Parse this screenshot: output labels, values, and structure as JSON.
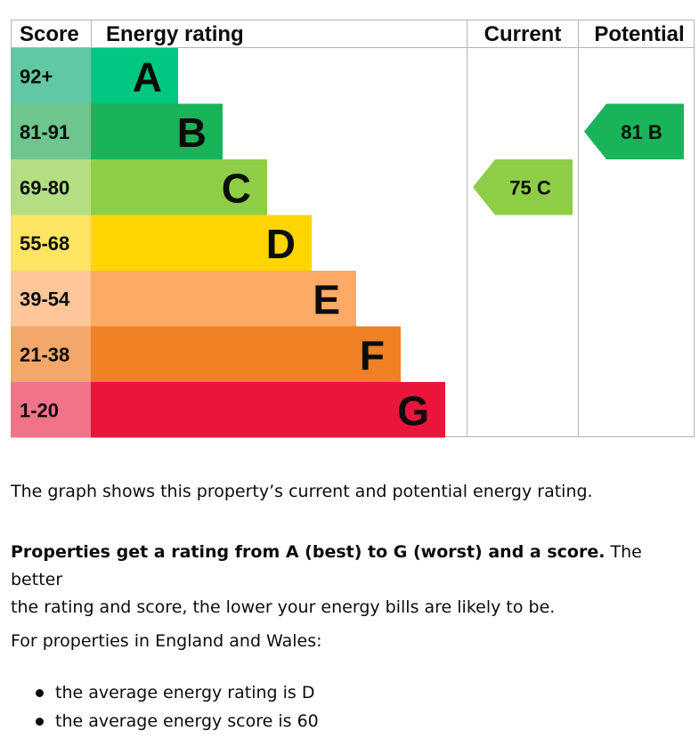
{
  "chart_data": {
    "type": "bar",
    "headers": {
      "score": "Score",
      "rating": "Energy rating",
      "current": "Current",
      "potential": "Potential"
    },
    "bands": [
      {
        "letter": "A",
        "range": "92+",
        "color": "#00c781",
        "score_color": "#62c8a3"
      },
      {
        "letter": "B",
        "range": "81-91",
        "color": "#19b459",
        "score_color": "#6ec58d"
      },
      {
        "letter": "C",
        "range": "69-80",
        "color": "#8dce46",
        "score_color": "#b3de84"
      },
      {
        "letter": "D",
        "range": "55-68",
        "color": "#ffd500",
        "score_color": "#fde462"
      },
      {
        "letter": "E",
        "range": "39-54",
        "color": "#fcaa65",
        "score_color": "#fdc79a"
      },
      {
        "letter": "F",
        "range": "21-38",
        "color": "#ef8023",
        "score_color": "#f4a76a"
      },
      {
        "letter": "G",
        "range": "1-20",
        "color": "#e9153b",
        "score_color": "#f0738a"
      }
    ],
    "current": {
      "score": 75,
      "letter": "C",
      "color": "#8dce46"
    },
    "potential": {
      "score": 81,
      "letter": "B",
      "color": "#19b459"
    }
  },
  "text": {
    "graph_note": "The graph shows this property’s current and potential energy rating.",
    "rating_bold": "Properties get a rating from A (best) to G (worst) and a score.",
    "rating_rest_line1": "The better",
    "rating_rest_line2": "the rating and score, the lower your energy bills are likely to be.",
    "region_intro": "For properties in England and Wales:",
    "bullets": [
      "the average energy rating is D",
      "the average energy score is 60"
    ]
  }
}
